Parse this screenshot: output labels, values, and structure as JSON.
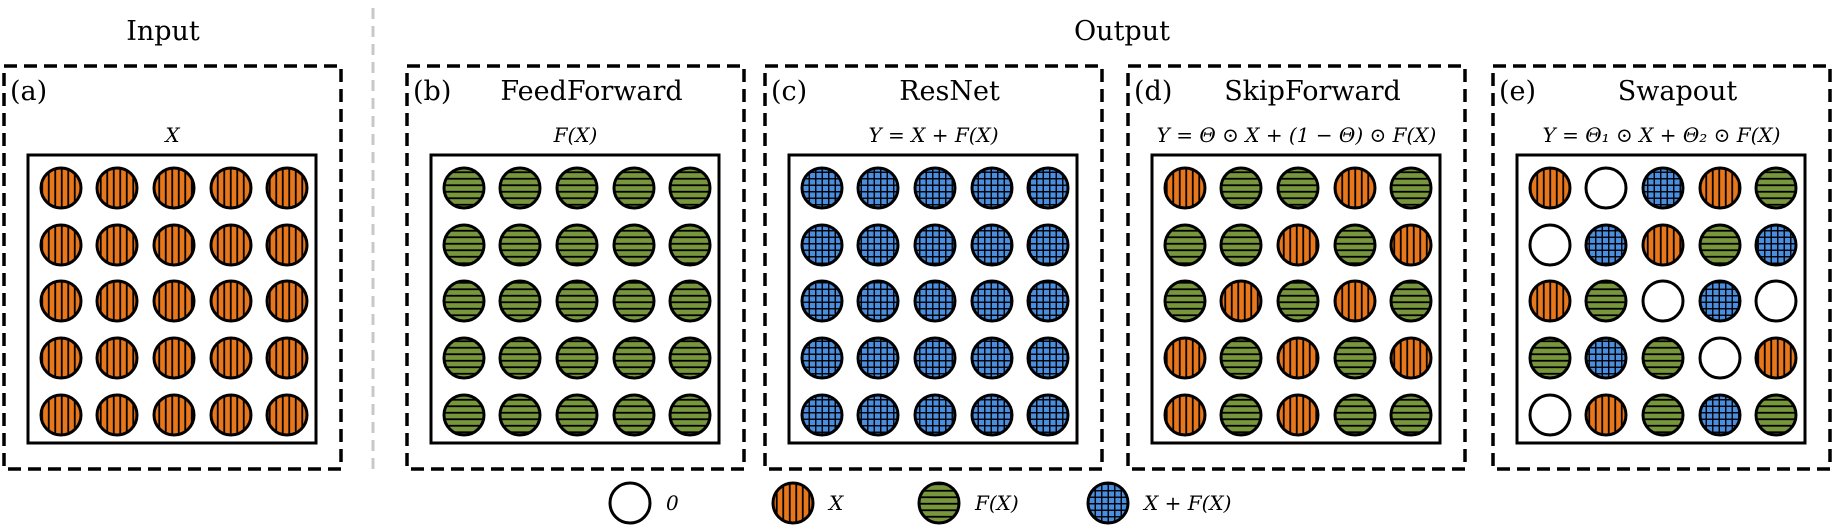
{
  "sections": {
    "input": "Input",
    "output": "Output"
  },
  "panels": [
    {
      "label": "(a)",
      "title": "",
      "formula": "X",
      "grid": [
        [
          "X",
          "X",
          "X",
          "X",
          "X"
        ],
        [
          "X",
          "X",
          "X",
          "X",
          "X"
        ],
        [
          "X",
          "X",
          "X",
          "X",
          "X"
        ],
        [
          "X",
          "X",
          "X",
          "X",
          "X"
        ],
        [
          "X",
          "X",
          "X",
          "X",
          "X"
        ]
      ]
    },
    {
      "label": "(b)",
      "title": "FeedForward",
      "formula": "F(X)",
      "grid": [
        [
          "F",
          "F",
          "F",
          "F",
          "F"
        ],
        [
          "F",
          "F",
          "F",
          "F",
          "F"
        ],
        [
          "F",
          "F",
          "F",
          "F",
          "F"
        ],
        [
          "F",
          "F",
          "F",
          "F",
          "F"
        ],
        [
          "F",
          "F",
          "F",
          "F",
          "F"
        ]
      ]
    },
    {
      "label": "(c)",
      "title": "ResNet",
      "formula": "Y = X + F(X)",
      "grid": [
        [
          "S",
          "S",
          "S",
          "S",
          "S"
        ],
        [
          "S",
          "S",
          "S",
          "S",
          "S"
        ],
        [
          "S",
          "S",
          "S",
          "S",
          "S"
        ],
        [
          "S",
          "S",
          "S",
          "S",
          "S"
        ],
        [
          "S",
          "S",
          "S",
          "S",
          "S"
        ]
      ]
    },
    {
      "label": "(d)",
      "title": "SkipForward",
      "formula": "Y = Θ ⊙ X + (1 − Θ) ⊙ F(X)",
      "grid": [
        [
          "X",
          "F",
          "F",
          "X",
          "F"
        ],
        [
          "F",
          "F",
          "X",
          "F",
          "X"
        ],
        [
          "F",
          "X",
          "F",
          "X",
          "F"
        ],
        [
          "X",
          "F",
          "X",
          "F",
          "X"
        ],
        [
          "X",
          "F",
          "X",
          "F",
          "F"
        ]
      ]
    },
    {
      "label": "(e)",
      "title": "Swapout",
      "formula": "Y = Θ₁ ⊙ X + Θ₂ ⊙ F(X)",
      "grid": [
        [
          "X",
          "0",
          "S",
          "X",
          "F"
        ],
        [
          "0",
          "S",
          "X",
          "F",
          "S"
        ],
        [
          "X",
          "F",
          "0",
          "S",
          "0"
        ],
        [
          "F",
          "S",
          "F",
          "0",
          "X"
        ],
        [
          "0",
          "X",
          "F",
          "S",
          "F"
        ]
      ]
    }
  ],
  "legend": [
    {
      "type": "0",
      "label": "0"
    },
    {
      "type": "X",
      "label": "X"
    },
    {
      "type": "F",
      "label": "F(X)"
    },
    {
      "type": "S",
      "label": "X + F(X)"
    }
  ],
  "colors": {
    "X": "#e8761a",
    "F": "#78963c",
    "S": "#4a8ee0",
    "0": "#ffffff",
    "stroke": "#000000",
    "separator": "#c8c8c8"
  }
}
